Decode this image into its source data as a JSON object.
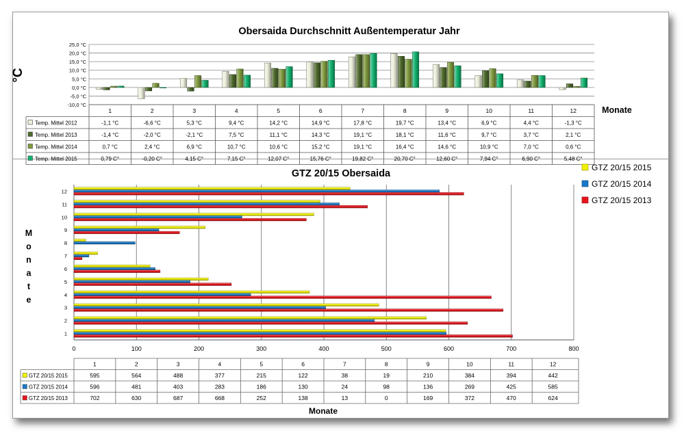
{
  "chart_data": [
    {
      "type": "bar",
      "title": "Obersaida Durchschnitt Außentemperatur Jahr",
      "ylabel": "°C",
      "xlabel": "Monate",
      "ylim": [
        -10,
        25
      ],
      "y_ticks": [
        "25,0 °C",
        "20,0 °C",
        "15,0 °C",
        "10,0 °C",
        "5,0 °C",
        "0,0 °C",
        "-5,0 °C",
        "-10,0 °C"
      ],
      "categories": [
        "1",
        "2",
        "3",
        "4",
        "5",
        "6",
        "7",
        "8",
        "9",
        "10",
        "11",
        "12"
      ],
      "legend_placement": "data-table",
      "series": [
        {
          "name": "Temp. Mittel 2012",
          "color": "#eef0dc",
          "values": [
            -1.1,
            -6.6,
            5.3,
            9.4,
            14.2,
            14.9,
            17.8,
            19.7,
            13.4,
            6.9,
            4.4,
            -1.3
          ],
          "labels": [
            "-1,1 °C",
            "-6,6 °C",
            "5,3 °C",
            "9,4 °C",
            "14,2 °C",
            "14,9 °C",
            "17,8 °C",
            "19,7 °C",
            "13,4 °C",
            "6,9 °C",
            "4,4 °C",
            "-1,3 °C"
          ]
        },
        {
          "name": "Temp. Mittel 2013",
          "color": "#4e6a2c",
          "values": [
            -1.4,
            -2.0,
            -2.1,
            7.5,
            11.1,
            14.3,
            19.1,
            18.1,
            11.6,
            9.7,
            3.7,
            2.1
          ],
          "labels": [
            "-1,4 °C",
            "-2,0 °C",
            "-2,1 °C",
            "7,5 °C",
            "11,1 °C",
            "14,3 °C",
            "19,1 °C",
            "18,1 °C",
            "11,6 °C",
            "9,7 °C",
            "3,7 °C",
            "2,1 °C"
          ]
        },
        {
          "name": "Temp. Mittel 2014",
          "color": "#7f9a3e",
          "values": [
            0.7,
            2.4,
            6.9,
            10.7,
            10.6,
            15.2,
            19.1,
            16.4,
            14.6,
            10.9,
            7.0,
            0.6
          ],
          "labels": [
            "0,7 °C",
            "2,4 °C",
            "6,9 °C",
            "10,7 °C",
            "10,6 °C",
            "15,2 °C",
            "19,1 °C",
            "16,4 °C",
            "14,6 °C",
            "10,9 °C",
            "7,0 °C",
            "0,6 °C"
          ]
        },
        {
          "name": "Temp. Mittel 2015",
          "color": "#12b26e",
          "values": [
            0.79,
            -0.2,
            4.15,
            7.15,
            12.07,
            15.76,
            19.82,
            20.7,
            12.6,
            7.94,
            6.9,
            5.48
          ],
          "labels": [
            "0,79 C°",
            "-0,20 C°",
            "4,15 C°",
            "7,15 C°",
            "12,07 C°",
            "15,76 C°",
            "19,82 C°",
            "20,70 C°",
            "12,60 C°",
            "7,94 C°",
            "6,90 C°",
            "5,48 C°"
          ]
        }
      ]
    },
    {
      "type": "bar",
      "orientation": "horizontal",
      "title": "GTZ 20/15 Obersaida",
      "ylabel": "Monate",
      "xlabel": "Monate",
      "xlim": [
        0,
        800
      ],
      "x_ticks": [
        "0",
        "100",
        "200",
        "300",
        "400",
        "500",
        "600",
        "700",
        "800"
      ],
      "categories": [
        "1",
        "2",
        "3",
        "4",
        "5",
        "6",
        "7",
        "8",
        "9",
        "10",
        "11",
        "12"
      ],
      "legend_placement": "top-right",
      "series": [
        {
          "name": "GTZ 20/15  2015",
          "table_name": "GTZ 20/15 2015",
          "color": "#f2f200",
          "values": [
            595,
            564,
            488,
            377,
            215,
            122,
            38,
            19,
            210,
            384,
            394,
            442
          ]
        },
        {
          "name": "GTZ 20/15  2014",
          "table_name": "GTZ 20/15 2014",
          "color": "#1a78c8",
          "values": [
            596,
            481,
            403,
            283,
            186,
            130,
            24,
            98,
            136,
            269,
            425,
            585
          ]
        },
        {
          "name": "GTZ 20/15  2013",
          "table_name": "GTZ 20/15 2013",
          "color": "#e8141c",
          "values": [
            702,
            630,
            687,
            668,
            252,
            138,
            13,
            0,
            169,
            372,
            470,
            624
          ]
        }
      ]
    }
  ]
}
